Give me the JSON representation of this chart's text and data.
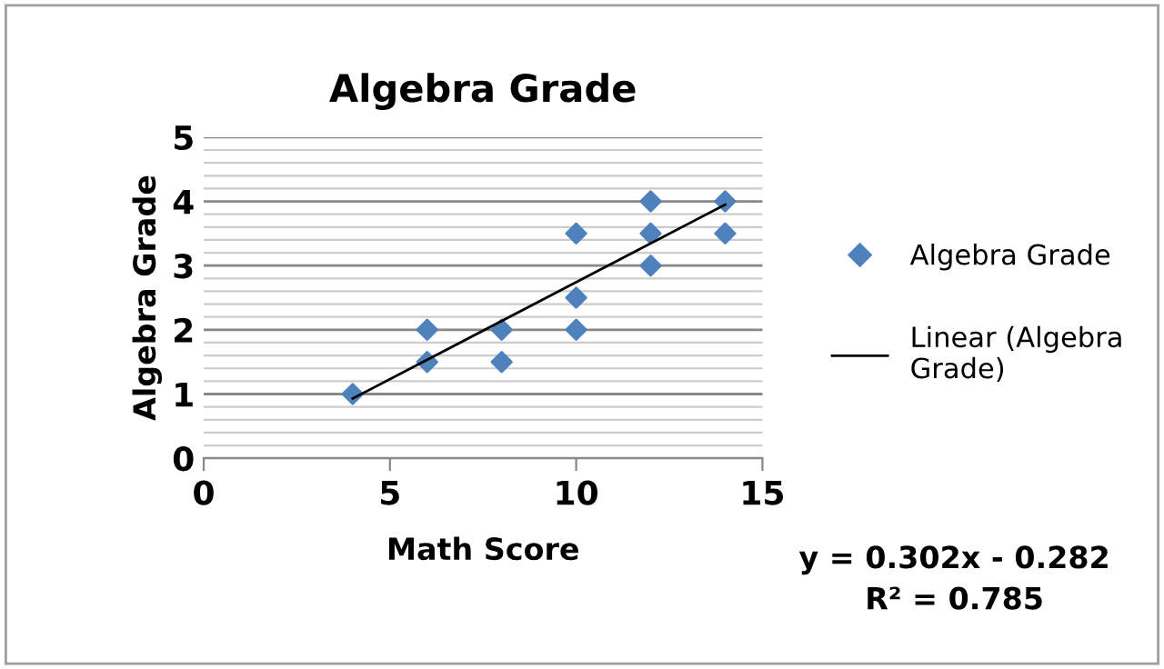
{
  "chart_data": {
    "type": "scatter",
    "title": "Algebra Grade",
    "xlabel": "Math Score",
    "ylabel": "Algebra Grade",
    "series": [
      {
        "name": "Algebra Grade",
        "color": "#4f81bd",
        "marker": "diamond",
        "x": [
          4,
          6,
          6,
          8,
          8,
          10,
          10,
          10,
          12,
          12,
          12,
          14,
          14
        ],
        "values": [
          1,
          2,
          1.5,
          2,
          1.5,
          3.5,
          2.5,
          2,
          4,
          3.5,
          3,
          4,
          3.5
        ]
      },
      {
        "name": "Linear (Algebra Grade)",
        "type": "line",
        "color": "#000000",
        "marker": "none",
        "line_style": "solid",
        "x": [
          4,
          14
        ],
        "values": [
          0.93,
          3.95
        ]
      }
    ],
    "xlim": [
      0,
      15
    ],
    "xticks": [
      0,
      5,
      10,
      15
    ],
    "ylim": [
      0,
      5
    ],
    "yticks": [
      0,
      {
        "value": 0.2,
        "label": null
      },
      {
        "value": 0.4,
        "label": null
      },
      {
        "value": 0.6,
        "label": null
      },
      {
        "value": 0.8,
        "label": null
      },
      1,
      {
        "value": 1.2,
        "label": null
      },
      {
        "value": 1.4,
        "label": null
      },
      {
        "value": 1.6,
        "label": null
      },
      {
        "value": 1.8,
        "label": null
      },
      2,
      {
        "value": 2.2,
        "label": null
      },
      {
        "value": 2.4,
        "label": null
      },
      {
        "value": 2.6,
        "label": null
      },
      {
        "value": 2.8,
        "label": null
      },
      3,
      {
        "value": 3.2,
        "label": null
      },
      {
        "value": 3.4,
        "label": null
      },
      {
        "value": 3.6,
        "label": null
      },
      {
        "value": 3.8,
        "label": null
      },
      4,
      {
        "value": 4.2,
        "label": null
      },
      {
        "value": 4.4,
        "label": null
      },
      {
        "value": 4.6,
        "label": null
      },
      {
        "value": 4.8,
        "label": null
      },
      5
    ],
    "grid": "y",
    "legend": "right",
    "annotations": [
      "y = 0.302x - 0.282\nR² = 0.785"
    ]
  }
}
